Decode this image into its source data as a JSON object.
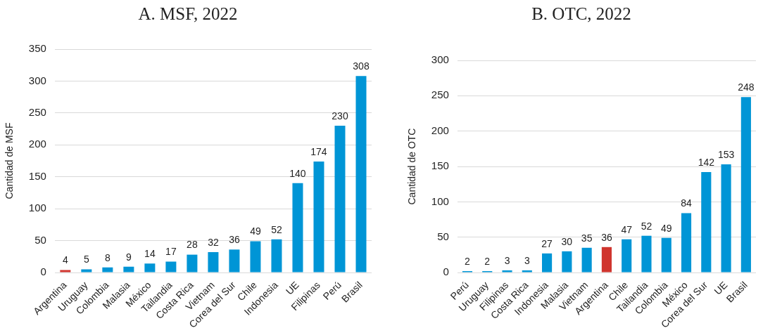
{
  "chart_data": [
    {
      "type": "bar",
      "title": "A. MSF, 2022",
      "ylabel": "Cantidad de MSF",
      "categories": [
        "Argentina",
        "Uruguay",
        "Colombia",
        "Malasia",
        "México",
        "Tailandia",
        "Costa Rica",
        "Vietnam",
        "Corea del Sur",
        "Chile",
        "Indonesia",
        "UE",
        "Filipinas",
        "Perú",
        "Brasil"
      ],
      "values": [
        4,
        5,
        8,
        9,
        14,
        17,
        28,
        32,
        36,
        49,
        52,
        140,
        174,
        230,
        308
      ],
      "colors": [
        "#d0352e",
        "#0095d6",
        "#0095d6",
        "#0095d6",
        "#0095d6",
        "#0095d6",
        "#0095d6",
        "#0095d6",
        "#0095d6",
        "#0095d6",
        "#0095d6",
        "#0095d6",
        "#0095d6",
        "#0095d6",
        "#0095d6"
      ],
      "ylim": [
        0,
        350
      ],
      "yticks": [
        0,
        50,
        100,
        150,
        200,
        250,
        300,
        350
      ],
      "grid": "y",
      "data_labels": true
    },
    {
      "type": "bar",
      "title": "B. OTC, 2022",
      "ylabel": "Cantidad de OTC",
      "categories": [
        "Perú",
        "Uruguay",
        "Filipinas",
        "Costa Rica",
        "Indonesia",
        "Malasia",
        "Vietnam",
        "Argentina",
        "Chile",
        "Tailandia",
        "Colombia",
        "México",
        "Corea del Sur",
        "UE",
        "Brasil"
      ],
      "values": [
        2,
        2,
        3,
        3,
        27,
        30,
        35,
        36,
        47,
        52,
        49,
        84,
        142,
        153,
        248
      ],
      "colors": [
        "#0095d6",
        "#0095d6",
        "#0095d6",
        "#0095d6",
        "#0095d6",
        "#0095d6",
        "#0095d6",
        "#d0352e",
        "#0095d6",
        "#0095d6",
        "#0095d6",
        "#0095d6",
        "#0095d6",
        "#0095d6",
        "#0095d6"
      ],
      "ylim": [
        0,
        300
      ],
      "yticks": [
        0,
        50,
        100,
        150,
        200,
        250,
        300
      ],
      "grid": "y",
      "data_labels": true
    }
  ]
}
